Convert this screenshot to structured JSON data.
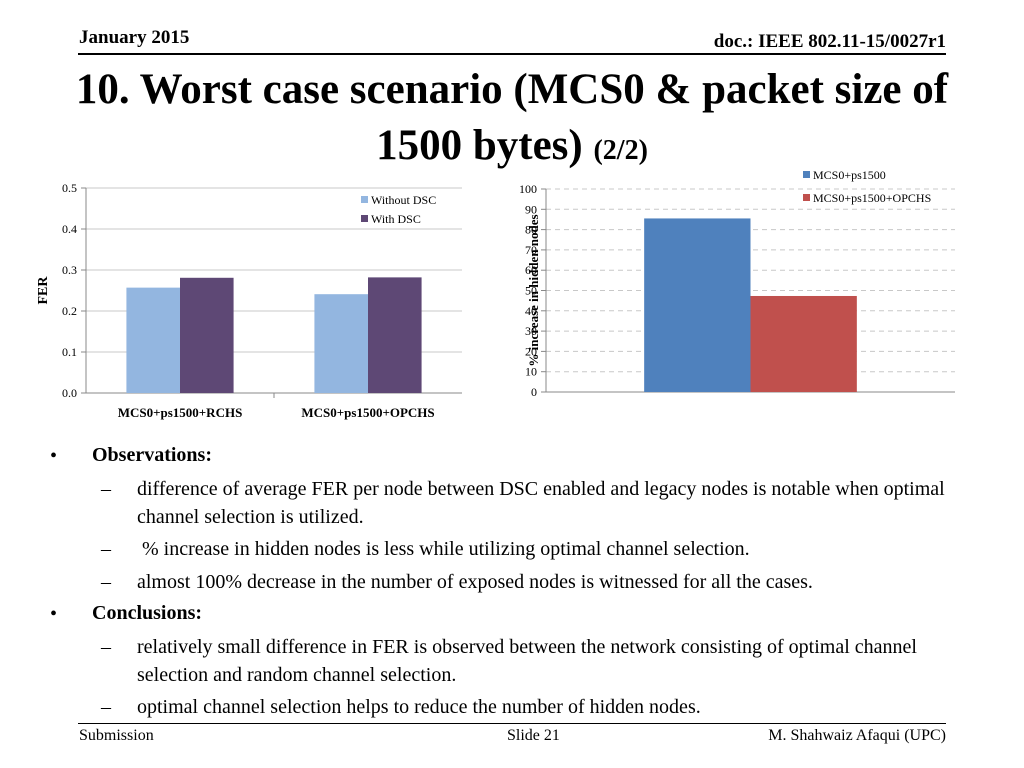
{
  "header": {
    "date": "January 2015",
    "doc": "doc.: IEEE 802.11-15/0027r1"
  },
  "title": {
    "main": "10. Worst case scenario (MCS0 & packet size of 1500 bytes)",
    "suffix": "(2/2)"
  },
  "chart_data": [
    {
      "type": "bar",
      "title": "",
      "ylabel": "FER",
      "xlabel": "",
      "categories": [
        "MCS0+ps1500+RCHS",
        "MCS0+ps1500+OPCHS"
      ],
      "series": [
        {
          "name": "Without DSC",
          "values": [
            0.257,
            0.241
          ],
          "color": "#93B6E0"
        },
        {
          "name": "With DSC",
          "values": [
            0.281,
            0.282
          ],
          "color": "#5E4875"
        }
      ],
      "ylim": [
        0,
        0.5
      ],
      "yticks": [
        "0.0",
        "0.1",
        "0.2",
        "0.3",
        "0.4",
        "0.5"
      ],
      "grid": "horizontal",
      "legend": "top-right"
    },
    {
      "type": "bar",
      "title": "",
      "ylabel": "% increase in hidden nodes",
      "xlabel": "",
      "categories": [
        ""
      ],
      "series": [
        {
          "name": "MCS0+ps1500",
          "values": [
            85.5
          ],
          "color": "#4F81BD"
        },
        {
          "name": "MCS0+ps1500+OPCHS",
          "values": [
            47.3
          ],
          "color": "#C0504D"
        }
      ],
      "ylim": [
        0,
        100
      ],
      "yticks": [
        "0",
        "10",
        "20",
        "30",
        "40",
        "50",
        "60",
        "70",
        "80",
        "90",
        "100"
      ],
      "grid": "horizontal-dashed",
      "legend": "top-right"
    }
  ],
  "observations": {
    "bullet": "•",
    "label": "Observations:",
    "items": [
      "difference of average FER per node between DSC enabled and legacy nodes is notable when optimal channel selection is utilized.",
      " % increase in hidden nodes is less while utilizing optimal channel selection.",
      "almost 100% decrease in the number of exposed nodes is witnessed for all the cases."
    ]
  },
  "conclusions": {
    "bullet": "•",
    "label": "Conclusions:",
    "items": [
      "relatively small difference in FER is observed between the network consisting of optimal channel selection and random channel selection.",
      "optimal channel selection helps to reduce the number of hidden nodes."
    ]
  },
  "dash": "–",
  "footer": {
    "left": "Submission",
    "center": "Slide 21",
    "right": "M. Shahwaiz Afaqui (UPC)"
  }
}
